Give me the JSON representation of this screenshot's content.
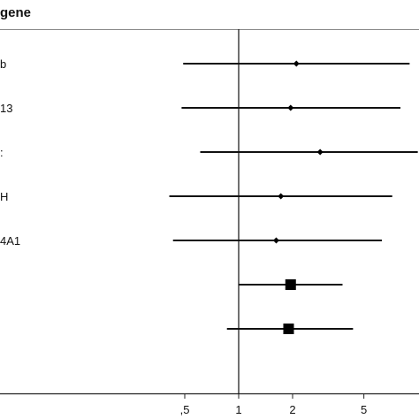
{
  "chart_data": {
    "type": "forest",
    "title": "gene",
    "x_scale": "log",
    "xlim": [
      0.25,
      10
    ],
    "reference_line": 1,
    "xticks": [
      {
        "value": 0.5,
        "label": ",5"
      },
      {
        "value": 1,
        "label": "1"
      },
      {
        "value": 2,
        "label": "2"
      },
      {
        "value": 5,
        "label": "5"
      }
    ],
    "rows": [
      {
        "label": "b",
        "estimate": 2.1,
        "ci_low": 0.49,
        "ci_high": 9.0,
        "marker": "diamond"
      },
      {
        "label": "13",
        "estimate": 1.95,
        "ci_low": 0.48,
        "ci_high": 8.0,
        "marker": "diamond"
      },
      {
        "label": ":",
        "estimate": 2.85,
        "ci_low": 0.61,
        "ci_high": 10.0,
        "marker": "diamond"
      },
      {
        "label": "H",
        "estimate": 1.72,
        "ci_low": 0.41,
        "ci_high": 7.2,
        "marker": "diamond"
      },
      {
        "label": "4A1",
        "estimate": 1.62,
        "ci_low": 0.43,
        "ci_high": 6.3,
        "marker": "diamond"
      },
      {
        "label": "",
        "estimate": 1.95,
        "ci_low": 1.0,
        "ci_high": 3.8,
        "marker": "square"
      },
      {
        "label": "",
        "estimate": 1.9,
        "ci_low": 0.86,
        "ci_high": 4.35,
        "marker": "square"
      }
    ],
    "grid": false,
    "legend": "none"
  }
}
